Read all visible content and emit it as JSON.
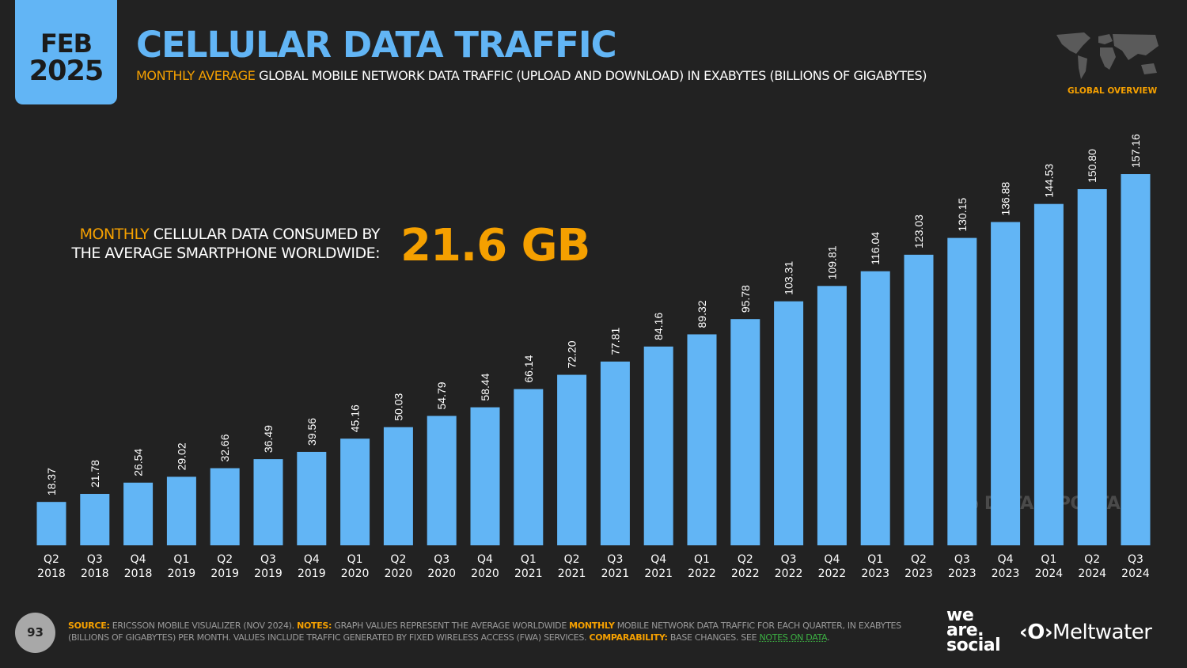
{
  "header": {
    "month": "FEB",
    "year": "2025",
    "title": "CELLULAR DATA TRAFFIC",
    "subtitle_highlight": "MONTHLY AVERAGE",
    "subtitle_rest": " GLOBAL MOBILE NETWORK DATA TRAFFIC (UPLOAD AND DOWNLOAD) IN EXABYTES (BILLIONS OF GIGABYTES)",
    "section_label": "GLOBAL OVERVIEW"
  },
  "callout": {
    "highlight": "MONTHLY",
    "line1_rest": " CELLULAR DATA CONSUMED BY",
    "line2": "THE AVERAGE SMARTPHONE WORLDWIDE:",
    "value": "21.6 GB"
  },
  "watermark": "DATAREPORTAL",
  "chart_data": {
    "type": "bar",
    "title": "CELLULAR DATA TRAFFIC",
    "categories": [
      [
        "Q2",
        "2018"
      ],
      [
        "Q3",
        "2018"
      ],
      [
        "Q4",
        "2018"
      ],
      [
        "Q1",
        "2019"
      ],
      [
        "Q2",
        "2019"
      ],
      [
        "Q3",
        "2019"
      ],
      [
        "Q4",
        "2019"
      ],
      [
        "Q1",
        "2020"
      ],
      [
        "Q2",
        "2020"
      ],
      [
        "Q3",
        "2020"
      ],
      [
        "Q4",
        "2020"
      ],
      [
        "Q1",
        "2021"
      ],
      [
        "Q2",
        "2021"
      ],
      [
        "Q3",
        "2021"
      ],
      [
        "Q4",
        "2021"
      ],
      [
        "Q1",
        "2022"
      ],
      [
        "Q2",
        "2022"
      ],
      [
        "Q3",
        "2022"
      ],
      [
        "Q4",
        "2022"
      ],
      [
        "Q1",
        "2023"
      ],
      [
        "Q2",
        "2023"
      ],
      [
        "Q3",
        "2023"
      ],
      [
        "Q4",
        "2023"
      ],
      [
        "Q1",
        "2024"
      ],
      [
        "Q2",
        "2024"
      ],
      [
        "Q3",
        "2024"
      ]
    ],
    "values": [
      18.37,
      21.78,
      26.54,
      29.02,
      32.66,
      36.49,
      39.56,
      45.16,
      50.03,
      54.79,
      58.44,
      66.14,
      72.2,
      77.81,
      84.16,
      89.32,
      95.78,
      103.31,
      109.81,
      116.04,
      123.03,
      130.15,
      136.88,
      144.53,
      150.8,
      157.16
    ],
    "labels": [
      "18.37",
      "21.78",
      "26.54",
      "29.02",
      "32.66",
      "36.49",
      "39.56",
      "45.16",
      "50.03",
      "54.79",
      "58.44",
      "66.14",
      "72.20",
      "77.81",
      "84.16",
      "89.32",
      "95.78",
      "103.31",
      "109.81",
      "116.04",
      "123.03",
      "130.15",
      "136.88",
      "144.53",
      "150.80",
      "157.16"
    ],
    "ylim": [
      0,
      157.16
    ],
    "grid": false,
    "bar_color": "#62b5f5",
    "accent_color": "#f5a000"
  },
  "footer": {
    "page_number": "93",
    "source_label": "SOURCE:",
    "source_text": " ERICSSON MOBILE VISUALIZER (NOV 2024). ",
    "notes_label": "NOTES:",
    "notes_text_1": " GRAPH VALUES REPRESENT THE AVERAGE WORLDWIDE ",
    "notes_highlight": "MONTHLY",
    "notes_text_2": " MOBILE NETWORK DATA TRAFFIC FOR EACH QUARTER, IN EXABYTES (BILLIONS OF GIGABYTES) PER MONTH. VALUES INCLUDE TRAFFIC GENERATED BY FIXED WIRELESS ACCESS (FWA) SERVICES. ",
    "comparability_label": "COMPARABILITY:",
    "comparability_text": " BASE CHANGES. SEE ",
    "notes_link": "NOTES ON DATA",
    "end": ".",
    "logo_we": "we",
    "logo_are": "are.",
    "logo_social": "social",
    "logo_meltwater": "Meltwater"
  }
}
